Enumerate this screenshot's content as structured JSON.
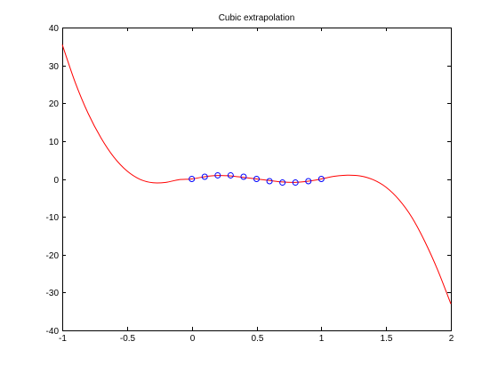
{
  "chart_data": {
    "type": "line",
    "title": "Cubic extrapolation",
    "xlabel": "",
    "ylabel": "",
    "xlim": [
      -1,
      2
    ],
    "ylim": [
      -40,
      40
    ],
    "xticks": [
      -1,
      -0.5,
      0,
      0.5,
      1,
      1.5,
      2
    ],
    "xtick_labels": [
      "-1",
      "-0.5",
      "0",
      "0.5",
      "1",
      "1.5",
      "2"
    ],
    "yticks": [
      -40,
      -30,
      -20,
      -10,
      0,
      10,
      20,
      30,
      40
    ],
    "ytick_labels": [
      "-40",
      "-30",
      "-20",
      "-10",
      "0",
      "10",
      "20",
      "30",
      "40"
    ],
    "grid": false,
    "series": [
      {
        "kind": "line",
        "color": "#ff0000",
        "x": [
          -1.0,
          -0.9,
          -0.8,
          -0.7,
          -0.6,
          -0.5,
          -0.4,
          -0.3,
          -0.2,
          -0.1,
          0.0,
          0.1,
          0.2,
          0.3,
          0.4,
          0.5,
          0.6,
          0.7,
          0.8,
          0.9,
          1.0,
          1.1,
          1.2,
          1.3,
          1.4,
          1.5,
          1.6,
          1.7,
          1.8,
          1.9,
          2.0
        ],
        "y": [
          35.5,
          25.5,
          17.3,
          10.8,
          5.7,
          2.1,
          -0.1,
          -1.0,
          -0.9,
          -0.2,
          0.0,
          0.6,
          0.9,
          0.8,
          0.4,
          0.0,
          -0.4,
          -0.8,
          -0.9,
          -0.6,
          0.0,
          0.7,
          1.0,
          0.8,
          -0.2,
          -2.2,
          -5.5,
          -10.2,
          -16.6,
          -24.2,
          -33.0
        ]
      },
      {
        "kind": "markers",
        "marker": "circle",
        "edge_color": "#0000ff",
        "x": [
          0.0,
          0.1,
          0.2,
          0.3,
          0.4,
          0.5,
          0.6,
          0.7,
          0.8,
          0.9,
          1.0
        ],
        "y": [
          0.0,
          0.59,
          0.95,
          0.95,
          0.59,
          0.0,
          -0.59,
          -0.95,
          -0.95,
          -0.59,
          0.0
        ]
      }
    ]
  }
}
